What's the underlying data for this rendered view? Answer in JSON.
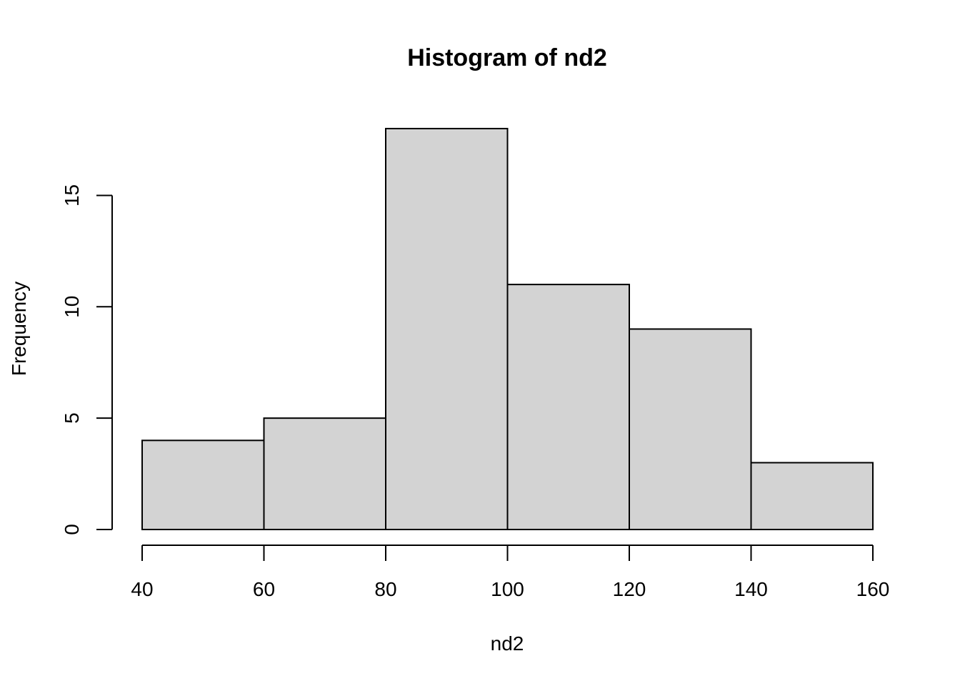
{
  "chart_data": {
    "type": "bar",
    "title": "Histogram of nd2",
    "xlabel": "nd2",
    "ylabel": "Frequency",
    "bins": [
      {
        "start": 40,
        "end": 60,
        "count": 4
      },
      {
        "start": 60,
        "end": 80,
        "count": 5
      },
      {
        "start": 80,
        "end": 100,
        "count": 18
      },
      {
        "start": 100,
        "end": 120,
        "count": 11
      },
      {
        "start": 120,
        "end": 140,
        "count": 9
      },
      {
        "start": 140,
        "end": 160,
        "count": 3
      }
    ],
    "xlim": [
      40,
      160
    ],
    "ylim": [
      0,
      18
    ],
    "x_ticks": [
      "40",
      "60",
      "80",
      "100",
      "120",
      "140",
      "160"
    ],
    "y_ticks": [
      "0",
      "5",
      "10",
      "15"
    ],
    "bar_fill": "#d3d3d3",
    "bar_stroke": "#000000",
    "grid": false
  }
}
